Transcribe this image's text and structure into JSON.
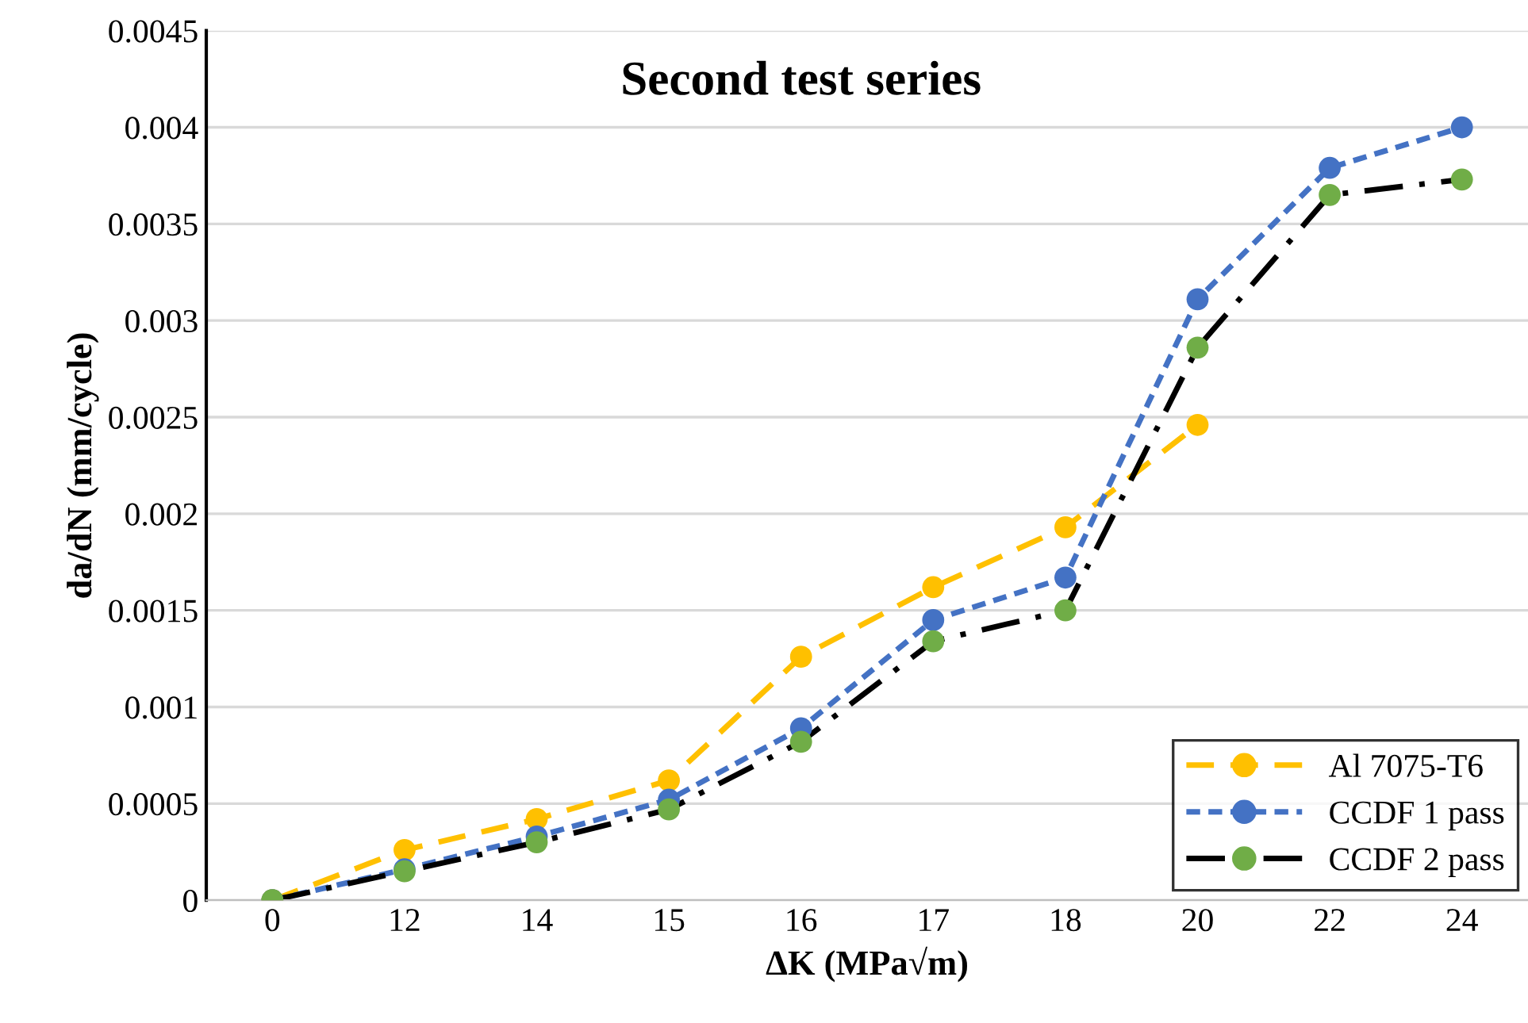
{
  "chart_data": {
    "type": "line",
    "title": "Second test series",
    "xlabel": "ΔK (MPa√m)",
    "ylabel": "da/dN (mm/cycle)",
    "categories": [
      "0",
      "12",
      "14",
      "15",
      "16",
      "17",
      "18",
      "20",
      "22",
      "24"
    ],
    "series": [
      {
        "name": "Al 7075-T6",
        "color": "#ffc000",
        "line_style": "dashed",
        "values": [
          0,
          0.00026,
          0.00042,
          0.00062,
          0.00126,
          0.00162,
          0.00193,
          0.00246,
          null,
          null
        ]
      },
      {
        "name": "CCDF 1 pass",
        "color": "#4472c4",
        "line_style": "dotted",
        "values": [
          0,
          0.00016,
          0.00033,
          0.00052,
          0.00089,
          0.00145,
          0.00167,
          0.00311,
          0.00379,
          0.004
        ]
      },
      {
        "name": "CCDF 2 pass",
        "color": "#000000",
        "colors": [
          "#70ad47",
          "#70ad47",
          "#70ad47",
          "#70ad47",
          "#70ad47",
          "#70ad47",
          "#70ad47",
          "#70ad47",
          "#70ad47",
          "#70ad47"
        ],
        "line_style": "dashdot",
        "values": [
          0,
          0.00015,
          0.0003,
          0.00047,
          0.00082,
          0.00134,
          0.0015,
          0.00286,
          0.00365,
          0.00373
        ]
      }
    ],
    "ylim": [
      0,
      0.0045
    ],
    "yticks": [
      0,
      0.0005,
      0.001,
      0.0015,
      0.002,
      0.0025,
      0.003,
      0.0035,
      0.004,
      0.0045
    ],
    "grid": "y",
    "legend": "bottom right",
    "marker": "circle"
  }
}
